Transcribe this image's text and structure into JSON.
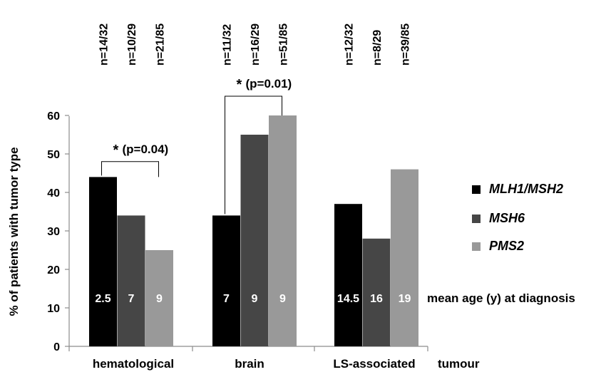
{
  "chart_data": {
    "type": "bar",
    "ylabel": "% of patients with tumor type",
    "xlabel": "tumour",
    "ylim": [
      0,
      60
    ],
    "yticks": [
      "0",
      "10",
      "20",
      "30",
      "40",
      "50",
      "60"
    ],
    "grid": false,
    "legend_position": "right",
    "categories": [
      "hematological",
      "brain",
      "LS-associated"
    ],
    "series": [
      {
        "name": "MLH1/MSH2",
        "color": "#000000",
        "values": [
          44,
          34,
          37
        ],
        "counts": [
          "n=14/32",
          "n=11/32",
          "n=12/32"
        ],
        "mean_age": [
          "2.5",
          "7",
          "14.5"
        ]
      },
      {
        "name": "MSH6",
        "color": "#464646",
        "values": [
          34,
          55,
          28
        ],
        "counts": [
          "n=10/29",
          "n=16/29",
          "n=8/29"
        ],
        "mean_age": [
          "7",
          "9",
          "16"
        ]
      },
      {
        "name": "PMS2",
        "color": "#999999",
        "values": [
          25,
          60,
          46
        ],
        "counts": [
          "n=21/85",
          "n=51/85",
          "n=39/85"
        ],
        "mean_age": [
          "9",
          "9",
          "19"
        ]
      }
    ],
    "mean_age_label": "mean age (y) at diagnosis",
    "significance": [
      {
        "category": 0,
        "star": "*",
        "text": "(p=0.04)",
        "level": 48
      },
      {
        "category": 1,
        "star": "*",
        "text": "(p=0.01)",
        "level": 65
      }
    ]
  }
}
